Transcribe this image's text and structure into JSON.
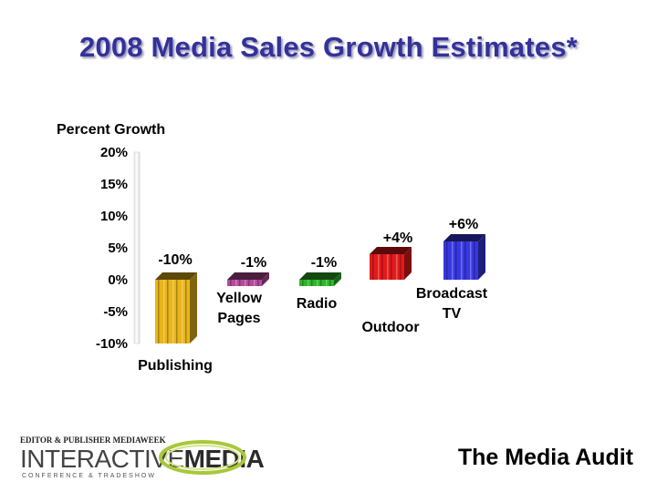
{
  "title": "2008 Media Sales Growth Estimates*",
  "chart_data": {
    "type": "bar",
    "ylabel": "Percent Growth",
    "ylim": [
      -10,
      20
    ],
    "yticks": [
      "20%",
      "15%",
      "10%",
      "5%",
      "0%",
      "-5%",
      "-10%"
    ],
    "categories": [
      {
        "lines": [
          "Publishing"
        ],
        "value": -10,
        "label": "-10%",
        "color": "#e8b51b"
      },
      {
        "lines": [
          "Yellow",
          "Pages"
        ],
        "value": -1,
        "label": "-1%",
        "color": "#b64a9c"
      },
      {
        "lines": [
          "Radio"
        ],
        "value": -1,
        "label": "-1%",
        "color": "#2fb52a"
      },
      {
        "lines": [
          "Outdoor"
        ],
        "value": 4,
        "label": "+4%",
        "color": "#e21a1a"
      },
      {
        "lines": [
          "Broadcast",
          "TV"
        ],
        "value": 6,
        "label": "+6%",
        "color": "#3838e0"
      }
    ],
    "grid": false,
    "legend": "none"
  },
  "logo": {
    "line1_a": "EDITOR & PUBLISHER",
    "line1_b": "MEDIAWEEK",
    "word1": "INTERACTIVE",
    "word2": "MEDIA",
    "tagline": "CONFERENCE & TRADESHOW"
  },
  "footer": {
    "brand": "The Media Audit"
  }
}
